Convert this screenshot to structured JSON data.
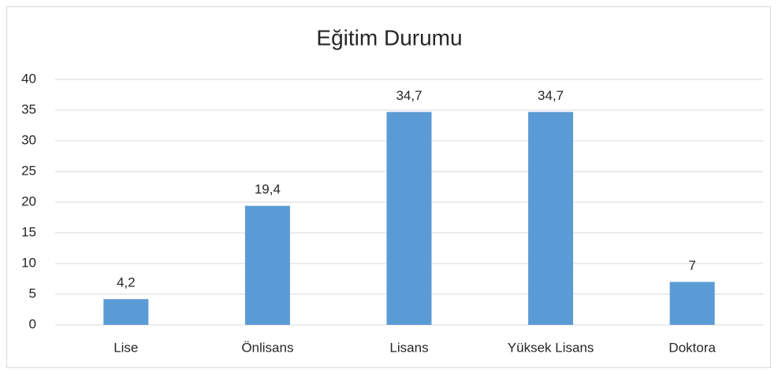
{
  "chart_data": {
    "type": "bar",
    "title": "Eğitim Durumu",
    "categories": [
      "Lise",
      "Önlisans",
      "Lisans",
      "Yüksek Lisans",
      "Doktora"
    ],
    "values": [
      4.2,
      19.4,
      34.7,
      34.7,
      7
    ],
    "value_labels": [
      "4,2",
      "19,4",
      "34,7",
      "34,7",
      "7"
    ],
    "color": "#5b9bd5",
    "ylim": [
      0,
      40
    ],
    "yticks": [
      0,
      5,
      10,
      15,
      20,
      25,
      30,
      35,
      40
    ],
    "grid": true
  }
}
